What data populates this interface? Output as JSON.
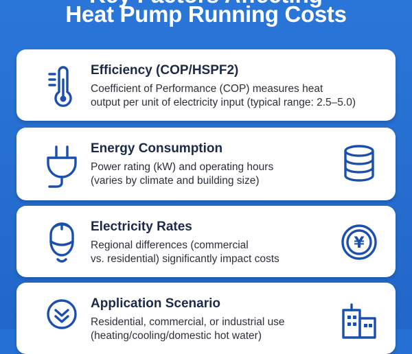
{
  "header": {
    "title": "Heat Pump Running Costs",
    "cut_title": "Key Factors Affecting"
  },
  "colors": {
    "background": "#2470d4",
    "card": "#ffffff",
    "icon": "#1a4fb0",
    "title_text": "#1b2a4a"
  },
  "cards": [
    {
      "title": "Efficiency (COP/HSPF2)",
      "desc_line1": "Coefficient of Performance (COP) measures heat",
      "desc_line2": "output per unit of electricity input (typical range: 2.5–5.0)",
      "lead_icon": "thermometer-icon"
    },
    {
      "title": "Energy Consumption",
      "desc_line1": "Power rating (kW) and operating hours",
      "desc_line2": "(varies by climate and building size)",
      "lead_icon": "plug-icon",
      "side_icon": "database-stack-icon"
    },
    {
      "title": "Electricity Rates",
      "desc_line1": "Regional differences (commercial",
      "desc_line2": "vs. residential) significantly impact costs",
      "lead_icon": "piggy-bank-icon",
      "side_icon": "yen-coin-icon",
      "coin_symbol": "¥"
    },
    {
      "title": "Application Scenario",
      "desc_line1": "Residential, commercial, or industrial use",
      "desc_line2": "(heating/cooling/domestic hot water)",
      "lead_icon": "check-circle-icon",
      "side_icon": "buildings-icon"
    }
  ]
}
